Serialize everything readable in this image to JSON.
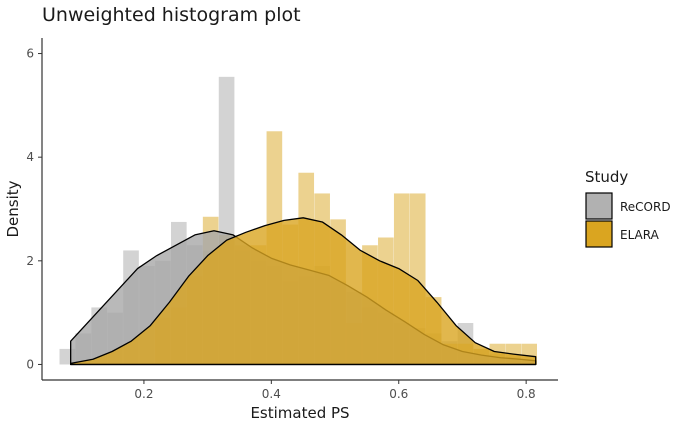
{
  "chart_data": {
    "type": "histogram-density",
    "title": "Unweighted histogram plot",
    "xlabel": "Estimated PS",
    "ylabel": "Density",
    "xlim": [
      0.04,
      0.85
    ],
    "ylim": [
      -0.3,
      6.3
    ],
    "x_ticks": [
      0.2,
      0.4,
      0.6,
      0.8
    ],
    "y_ticks": [
      0,
      2,
      4,
      6
    ],
    "grid": false,
    "legend": {
      "title": "Study",
      "position": "right"
    },
    "series": [
      {
        "name": "ReCORD",
        "color": "#a8a8a8",
        "bin_width": 0.025,
        "bars": [
          {
            "x": 0.08,
            "y": 0.3
          },
          {
            "x": 0.105,
            "y": 0.6
          },
          {
            "x": 0.13,
            "y": 1.1
          },
          {
            "x": 0.155,
            "y": 1.0
          },
          {
            "x": 0.18,
            "y": 2.2
          },
          {
            "x": 0.205,
            "y": 1.9
          },
          {
            "x": 0.23,
            "y": 2.0
          },
          {
            "x": 0.255,
            "y": 2.75
          },
          {
            "x": 0.28,
            "y": 2.3
          },
          {
            "x": 0.305,
            "y": 2.2
          },
          {
            "x": 0.33,
            "y": 5.55
          },
          {
            "x": 0.355,
            "y": 2.2
          },
          {
            "x": 0.38,
            "y": 2.0
          },
          {
            "x": 0.405,
            "y": 1.9
          },
          {
            "x": 0.43,
            "y": 1.6
          },
          {
            "x": 0.455,
            "y": 1.7
          },
          {
            "x": 0.48,
            "y": 1.9
          },
          {
            "x": 0.505,
            "y": 1.6
          },
          {
            "x": 0.53,
            "y": 1.4
          },
          {
            "x": 0.555,
            "y": 1.1
          },
          {
            "x": 0.58,
            "y": 1.0
          },
          {
            "x": 0.605,
            "y": 0.8
          },
          {
            "x": 0.63,
            "y": 0.7
          },
          {
            "x": 0.655,
            "y": 0.6
          },
          {
            "x": 0.68,
            "y": 0.45
          },
          {
            "x": 0.705,
            "y": 0.8
          },
          {
            "x": 0.73,
            "y": 0.3
          },
          {
            "x": 0.755,
            "y": 0.2
          },
          {
            "x": 0.78,
            "y": 0.15
          }
        ],
        "density": [
          [
            0.085,
            0.0
          ],
          [
            0.085,
            0.45
          ],
          [
            0.1,
            0.65
          ],
          [
            0.13,
            1.05
          ],
          [
            0.16,
            1.45
          ],
          [
            0.19,
            1.85
          ],
          [
            0.22,
            2.1
          ],
          [
            0.25,
            2.3
          ],
          [
            0.28,
            2.5
          ],
          [
            0.31,
            2.58
          ],
          [
            0.34,
            2.5
          ],
          [
            0.37,
            2.25
          ],
          [
            0.4,
            2.05
          ],
          [
            0.43,
            1.92
          ],
          [
            0.46,
            1.82
          ],
          [
            0.49,
            1.72
          ],
          [
            0.52,
            1.52
          ],
          [
            0.55,
            1.3
          ],
          [
            0.58,
            1.05
          ],
          [
            0.61,
            0.82
          ],
          [
            0.64,
            0.58
          ],
          [
            0.67,
            0.38
          ],
          [
            0.7,
            0.25
          ],
          [
            0.73,
            0.18
          ],
          [
            0.76,
            0.13
          ],
          [
            0.79,
            0.1
          ],
          [
            0.815,
            0.07
          ],
          [
            0.815,
            0.0
          ]
        ]
      },
      {
        "name": "ELARA",
        "color": "#daa520",
        "bin_width": 0.025,
        "bars": [
          {
            "x": 0.23,
            "y": 0.9
          },
          {
            "x": 0.255,
            "y": 1.1
          },
          {
            "x": 0.28,
            "y": 1.7
          },
          {
            "x": 0.305,
            "y": 2.85
          },
          {
            "x": 0.33,
            "y": 2.5
          },
          {
            "x": 0.355,
            "y": 2.3
          },
          {
            "x": 0.38,
            "y": 2.3
          },
          {
            "x": 0.405,
            "y": 4.5
          },
          {
            "x": 0.43,
            "y": 2.7
          },
          {
            "x": 0.455,
            "y": 3.7
          },
          {
            "x": 0.48,
            "y": 3.3
          },
          {
            "x": 0.505,
            "y": 2.8
          },
          {
            "x": 0.53,
            "y": 0.8
          },
          {
            "x": 0.555,
            "y": 2.3
          },
          {
            "x": 0.58,
            "y": 2.45
          },
          {
            "x": 0.605,
            "y": 3.3
          },
          {
            "x": 0.63,
            "y": 3.3
          },
          {
            "x": 0.655,
            "y": 1.3
          },
          {
            "x": 0.68,
            "y": 0.4
          },
          {
            "x": 0.705,
            "y": 0.4
          },
          {
            "x": 0.73,
            "y": 0.3
          },
          {
            "x": 0.755,
            "y": 0.4
          },
          {
            "x": 0.78,
            "y": 0.4
          },
          {
            "x": 0.805,
            "y": 0.4
          }
        ],
        "density": [
          [
            0.085,
            0.0
          ],
          [
            0.085,
            0.02
          ],
          [
            0.12,
            0.1
          ],
          [
            0.15,
            0.25
          ],
          [
            0.18,
            0.45
          ],
          [
            0.21,
            0.75
          ],
          [
            0.24,
            1.2
          ],
          [
            0.27,
            1.7
          ],
          [
            0.3,
            2.1
          ],
          [
            0.33,
            2.4
          ],
          [
            0.36,
            2.55
          ],
          [
            0.39,
            2.68
          ],
          [
            0.42,
            2.78
          ],
          [
            0.45,
            2.83
          ],
          [
            0.48,
            2.75
          ],
          [
            0.51,
            2.5
          ],
          [
            0.54,
            2.2
          ],
          [
            0.57,
            2.0
          ],
          [
            0.6,
            1.85
          ],
          [
            0.63,
            1.62
          ],
          [
            0.66,
            1.2
          ],
          [
            0.69,
            0.75
          ],
          [
            0.72,
            0.42
          ],
          [
            0.75,
            0.25
          ],
          [
            0.78,
            0.2
          ],
          [
            0.815,
            0.15
          ],
          [
            0.815,
            0.0
          ]
        ]
      }
    ]
  }
}
